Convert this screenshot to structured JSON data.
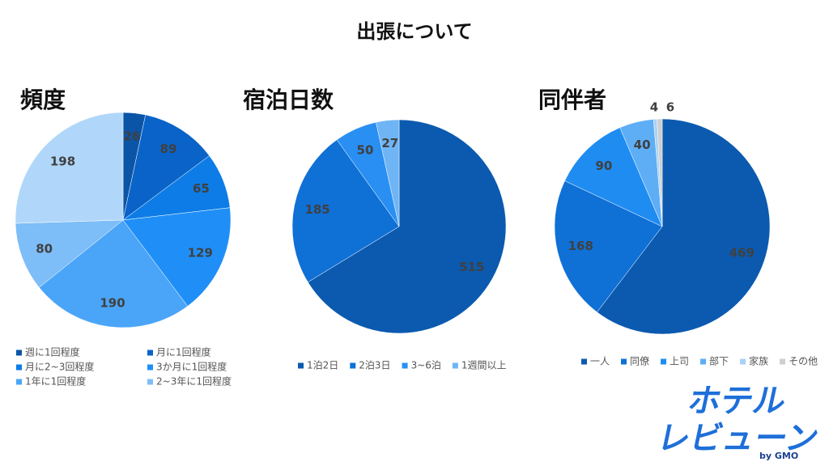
{
  "title": "出張について",
  "logo": {
    "line1": "ホテル",
    "line2": "レビューン",
    "by": "by GMO"
  },
  "chart_data": [
    {
      "type": "pie",
      "title": "頻度",
      "categories": [
        "週に1回程度",
        "月に1回程度",
        "月に2~3回程度",
        "3か月に1回程度",
        "1年に1回程度",
        "2~3年に1回程度",
        null
      ],
      "values": [
        26,
        89,
        65,
        129,
        190,
        80,
        198
      ],
      "colors": [
        "#0b55a6",
        "#0a63c8",
        "#0d7ce6",
        "#1f8ff7",
        "#4aa5f8",
        "#7dbdf8",
        "#b0d7fa"
      ]
    },
    {
      "type": "pie",
      "title": "宿泊日数",
      "categories": [
        "1泊2日",
        "2泊3日",
        "3~6泊",
        "1週間以上"
      ],
      "values": [
        515,
        185,
        50,
        27
      ],
      "colors": [
        "#0b5aaf",
        "#0f70d6",
        "#2a8ff2",
        "#6fb5f6"
      ]
    },
    {
      "type": "pie",
      "title": "同伴者",
      "categories": [
        "一人",
        "同僚",
        "上司",
        "部下",
        "家族",
        "その他"
      ],
      "values": [
        469,
        168,
        90,
        40,
        4,
        6
      ],
      "colors": [
        "#0b5aaf",
        "#0f70d6",
        "#1f8cf2",
        "#5eaef6",
        "#a9d2f8",
        "#cfcfcf"
      ]
    }
  ]
}
